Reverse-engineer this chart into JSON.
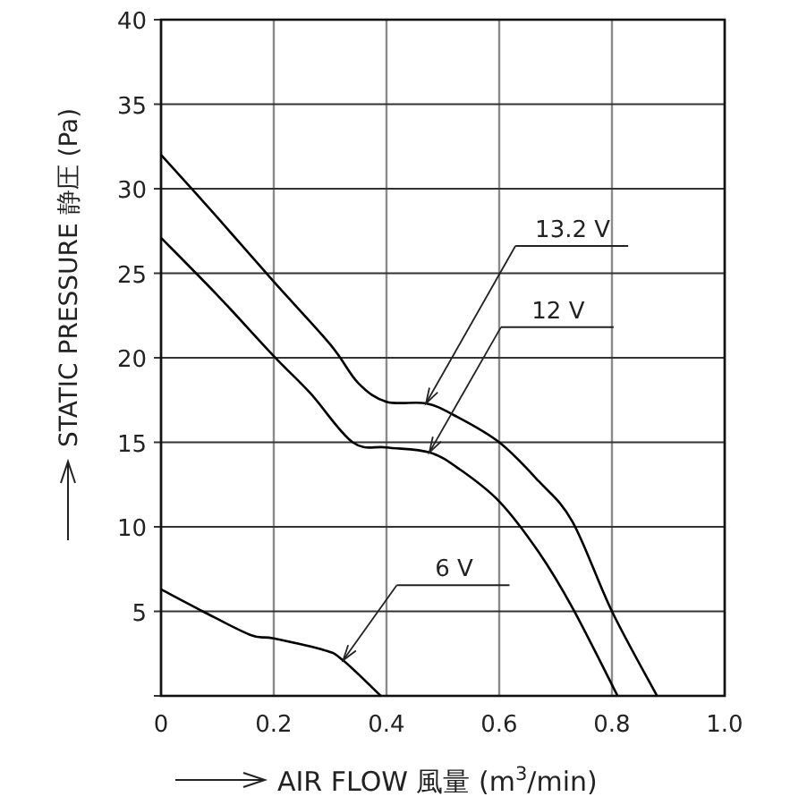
{
  "chart_data": {
    "type": "line",
    "xlabel": "AIR FLOW 風量 (m$^{3}$/min)",
    "ylabel": "STATIC PRESSURE 静圧 (Pa)",
    "xlim": [
      0,
      1
    ],
    "ylim": [
      0,
      40
    ],
    "xticks": [
      0,
      0.2,
      0.4,
      0.6,
      0.8,
      {
        "value": 1,
        "label": "1.0"
      }
    ],
    "yticks": [
      {
        "value": 0,
        "label": null
      },
      5,
      10,
      15,
      20,
      25,
      30,
      35,
      40
    ],
    "grid": true,
    "series": [
      {
        "color": "#000000",
        "x": [
          0,
          0.1,
          0.2,
          0.3,
          0.35,
          0.4,
          0.47,
          0.52,
          0.6,
          0.67,
          0.73,
          0.8,
          0.88
        ],
        "values": [
          32,
          28.3,
          24.5,
          20.8,
          18.5,
          17.4,
          17.3,
          16.6,
          15,
          12.7,
          10.3,
          5,
          0
        ]
      },
      {
        "color": "#000000",
        "x": [
          0,
          0.1,
          0.2,
          0.265,
          0.34,
          0.4,
          0.476,
          0.53,
          0.6,
          0.67,
          0.73,
          0.81
        ],
        "values": [
          27.1,
          23.7,
          20.1,
          17.9,
          15,
          14.7,
          14.4,
          13.4,
          11.5,
          8.5,
          5.2,
          0
        ]
      },
      {
        "color": "#000000",
        "x": [
          0,
          0.074,
          0.159,
          0.2,
          0.29,
          0.323,
          0.39
        ],
        "values": [
          6.3,
          5,
          3.6,
          3.4,
          2.7,
          2.1,
          0
        ]
      }
    ],
    "annotations": [
      {
        "text": "13.2 V",
        "x": 0.47,
        "y": 17.3
      },
      "12 V",
      "6 V"
    ]
  }
}
